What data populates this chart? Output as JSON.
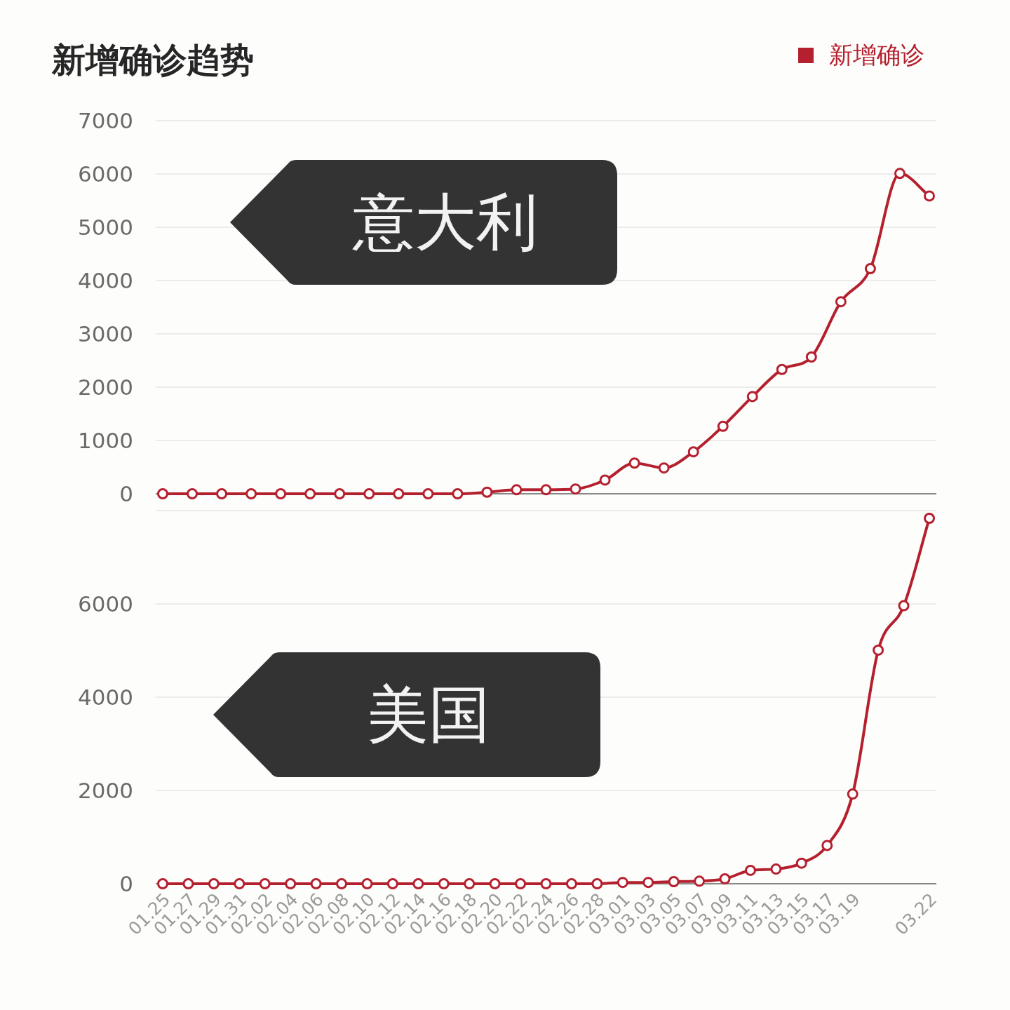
{
  "chart_data": [
    {
      "type": "line",
      "title": "新增确诊趋势",
      "legend": "top right",
      "grid": "y",
      "marker": "circle",
      "line_style": "solid",
      "tick_labels": "y",
      "annotations": [
        "意大利"
      ],
      "categories": [
        null,
        null,
        null,
        null,
        null,
        null,
        null,
        null,
        null,
        null,
        null,
        null,
        null,
        null,
        null,
        null,
        null,
        null,
        null,
        null,
        null,
        null,
        null,
        null,
        null,
        null,
        null
      ],
      "ylim": [
        0,
        7000
      ],
      "yticks": [
        0,
        1000,
        2000,
        3000,
        4000,
        5000,
        6000,
        7000
      ],
      "series": [
        {
          "name": "新增确诊",
          "color": "#b5202e",
          "values": [
            0,
            0,
            0,
            0,
            0,
            0,
            0,
            0,
            0,
            0,
            0,
            30,
            75,
            75,
            90,
            257,
            576,
            485,
            787,
            1266,
            1824,
            2332,
            2566,
            3603,
            4224,
            6009,
            5587
          ]
        }
      ]
    },
    {
      "type": "line",
      "grid": "y",
      "marker": "circle",
      "line_style": "solid",
      "annotations": [
        "美国"
      ],
      "categories": [
        "01.25",
        "01.27",
        "01.29",
        "01.31",
        "02.02",
        "02.04",
        "02.06",
        "02.08",
        "02.10",
        "02.12",
        "02.14",
        "02.16",
        "02.18",
        "02.20",
        "02.22",
        "02.24",
        "02.26",
        "02.28",
        "03.01",
        "03.03",
        "03.05",
        "03.07",
        "03.09",
        "03.11",
        "03.13",
        "03.15",
        "03.17",
        "03.19",
        null,
        null,
        "03.22"
      ],
      "ylim": [
        0,
        8000
      ],
      "yticks": [
        0,
        2000,
        4000,
        6000,
        {
          "value": 8000,
          "label": null
        }
      ],
      "series": [
        {
          "color": "#b5202e",
          "values": [
            0,
            0,
            0,
            0,
            0,
            0,
            0,
            0,
            0,
            0,
            0,
            0,
            0,
            0,
            0,
            0,
            0,
            0,
            28,
            28,
            45,
            55,
            105,
            287,
            314,
            441,
            821,
            1923,
            5008,
            5961,
            7835
          ]
        }
      ]
    }
  ]
}
